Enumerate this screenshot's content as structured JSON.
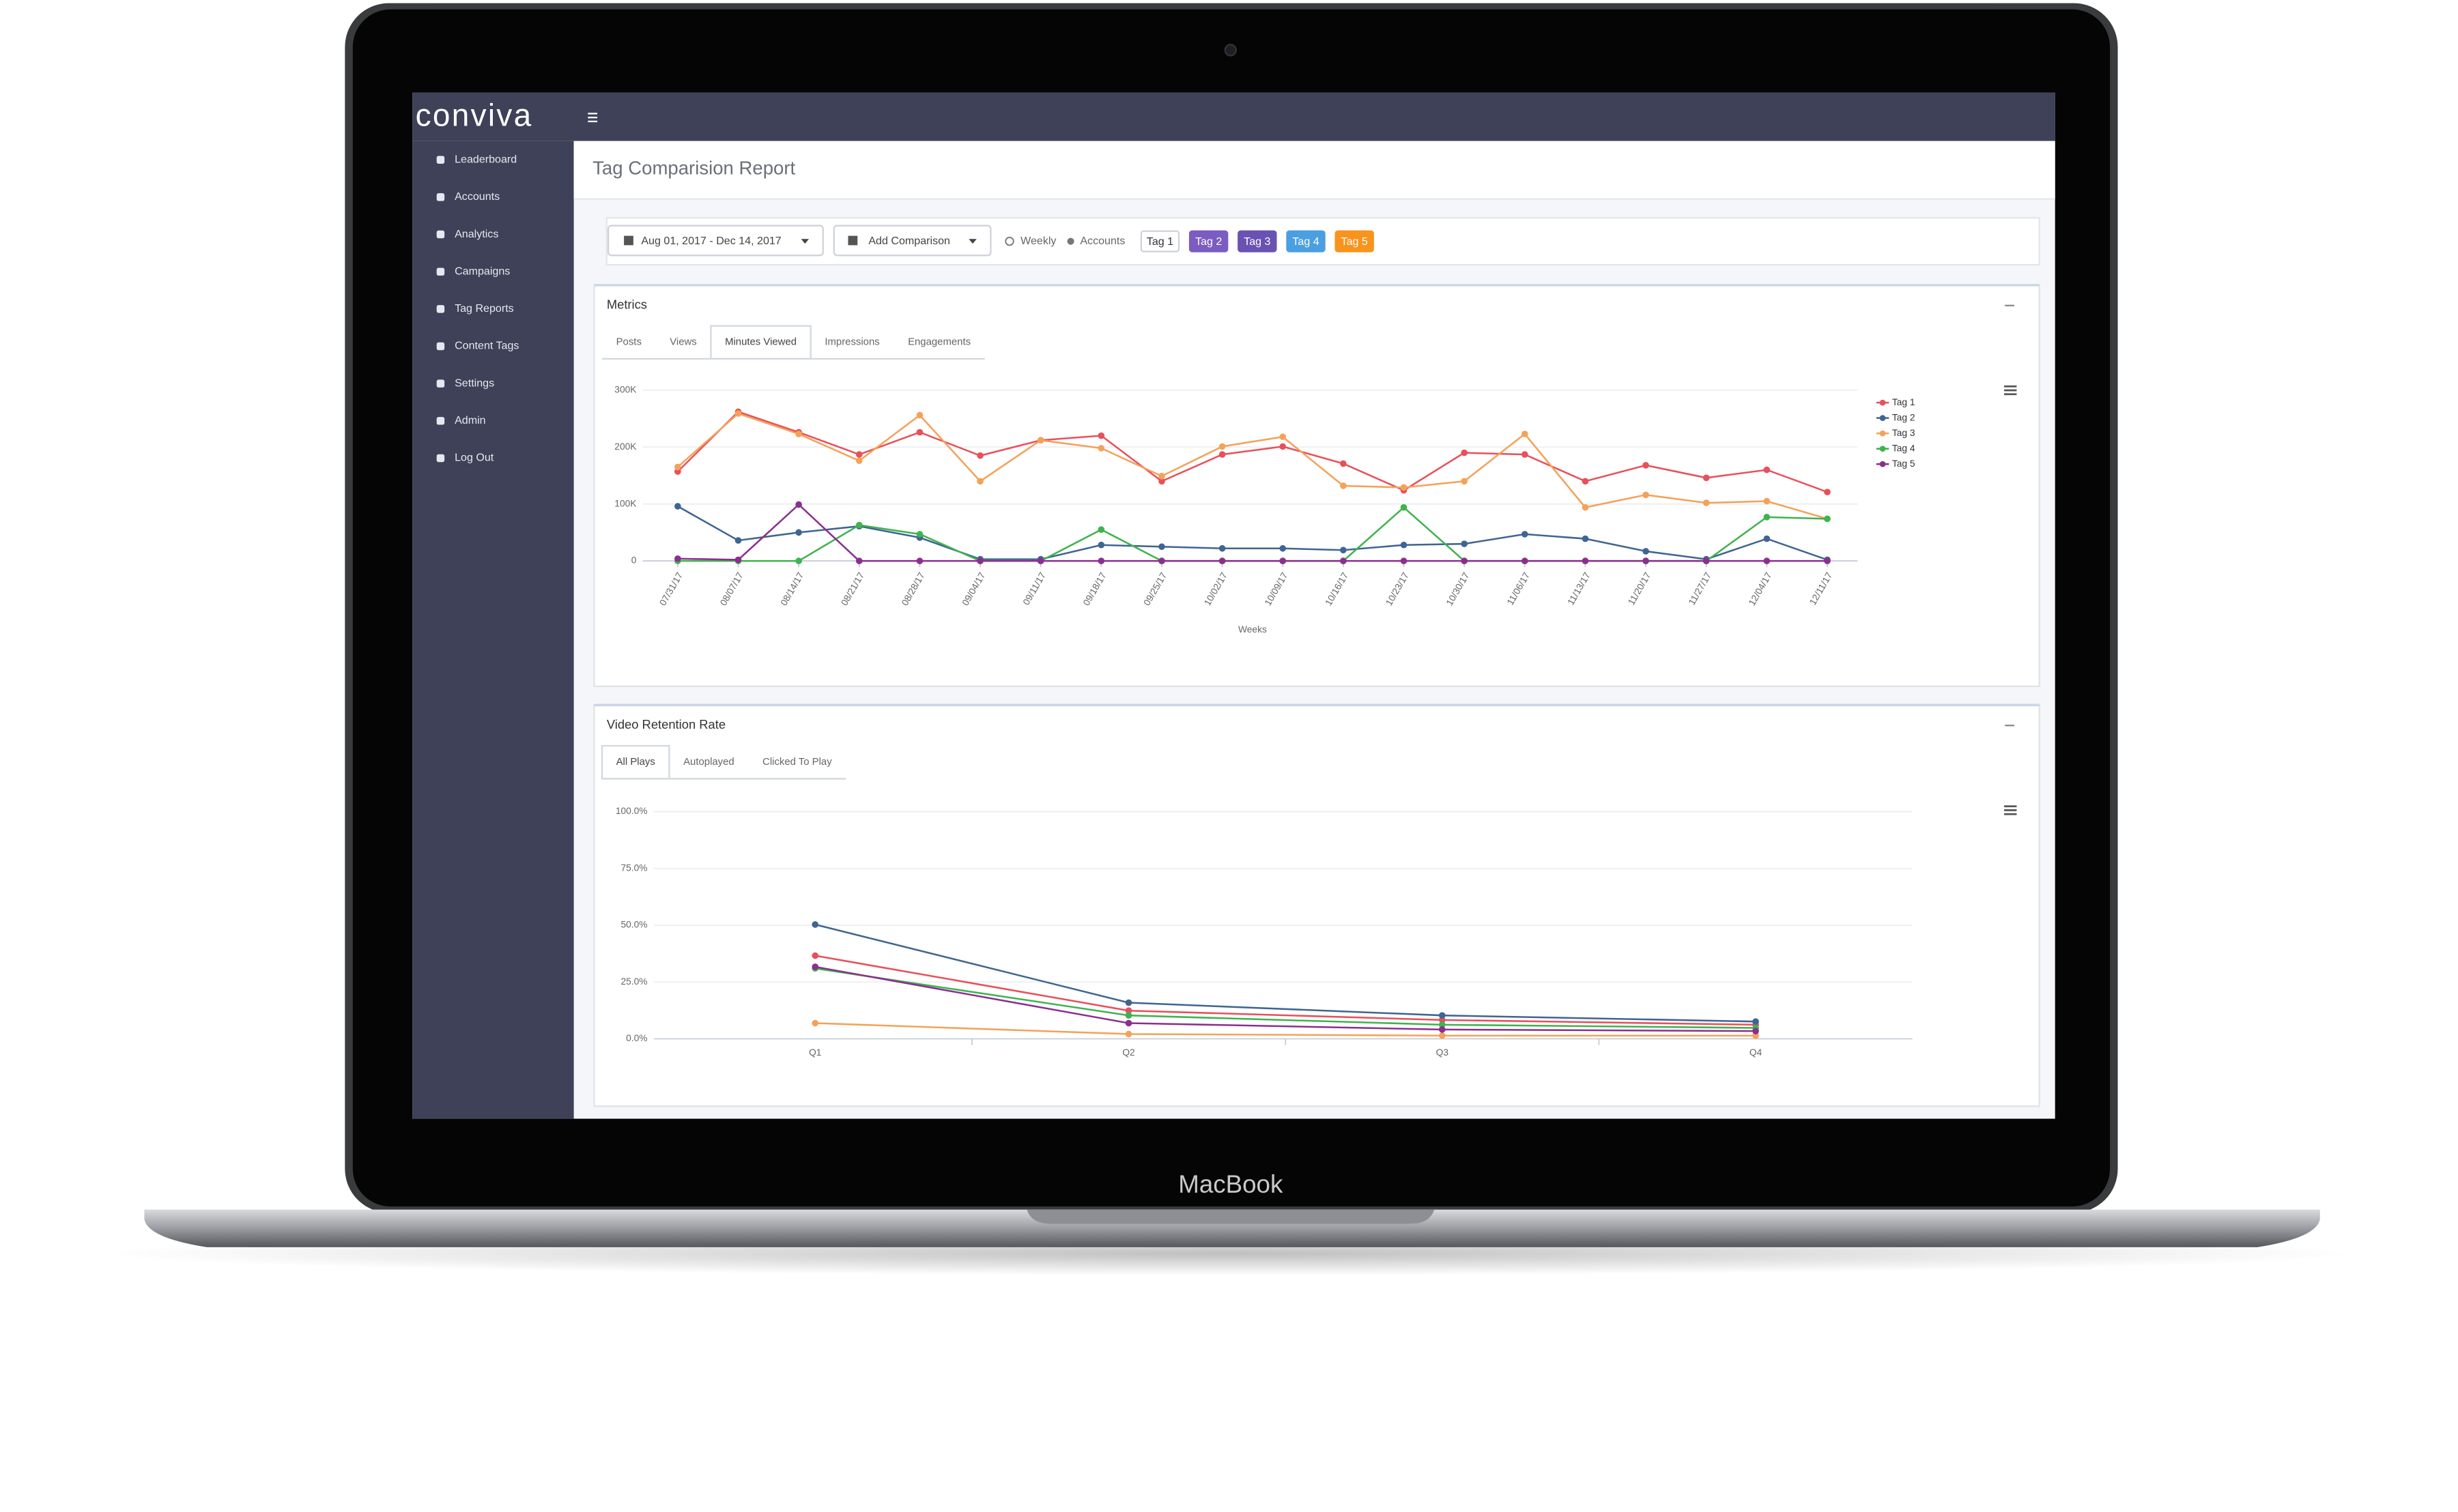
{
  "brand": "conviva",
  "device_label": "MacBook",
  "sidebar": [
    "Leaderboard",
    "Accounts",
    "Analytics",
    "Campaigns",
    "Tag Reports",
    "Content Tags",
    "Settings",
    "Admin",
    "Log Out"
  ],
  "page_title": "Tag Comparision Report",
  "toolbar": {
    "date_range": "Aug 01, 2017 - Dec 14, 2017",
    "add_comparison": "Add Comparison",
    "weekly": "Weekly",
    "accounts": "Accounts",
    "tags": [
      {
        "label": "Tag 1",
        "color": "#ffffff"
      },
      {
        "label": "Tag 2",
        "color": "#7b5cc0"
      },
      {
        "label": "Tag 3",
        "color": "#6a52b3"
      },
      {
        "label": "Tag 4",
        "color": "#4a9fe0"
      },
      {
        "label": "Tag 5",
        "color": "#f7941d"
      }
    ]
  },
  "chart_data": [
    {
      "type": "line",
      "title": "Metrics",
      "tabs": [
        "Posts",
        "Views",
        "Minutes Viewed",
        "Impressions",
        "Engagements"
      ],
      "active_tab": 2,
      "x_label": "Weeks",
      "categories": [
        "07/31/17",
        "08/07/17",
        "08/14/17",
        "08/21/17",
        "08/28/17",
        "09/04/17",
        "09/11/17",
        "09/18/17",
        "09/25/17",
        "10/02/17",
        "10/09/17",
        "10/16/17",
        "10/23/17",
        "10/30/17",
        "11/06/17",
        "11/13/17",
        "11/20/17",
        "11/27/17",
        "12/04/17",
        "12/11/17"
      ],
      "ylim": [
        0,
        300000
      ],
      "yticks": [
        0,
        {
          "value": 100000,
          "label": "100K"
        },
        {
          "value": 200000,
          "label": "200K"
        },
        {
          "value": 300000,
          "label": "300K"
        }
      ],
      "grid": true,
      "legend": "right",
      "series": [
        {
          "name": "Tag 1",
          "color": "#e8505b",
          "values": [
            157000,
            262000,
            226000,
            187000,
            226000,
            185000,
            212000,
            220000,
            140000,
            187000,
            201000,
            171000,
            124000,
            190000,
            187000,
            140000,
            168000,
            146000,
            160000,
            121000
          ]
        },
        {
          "name": "Tag 2",
          "color": "#3f6592",
          "values": [
            96000,
            36000,
            50000,
            61000,
            41000,
            3000,
            3000,
            28000,
            25000,
            22000,
            22000,
            19000,
            28000,
            30000,
            47000,
            39000,
            17000,
            3000,
            39000,
            2000
          ]
        },
        {
          "name": "Tag 3",
          "color": "#f4a259",
          "values": [
            165000,
            259000,
            223000,
            176000,
            256000,
            140000,
            212000,
            198000,
            149000,
            201000,
            218000,
            132000,
            129000,
            140000,
            223000,
            94000,
            116000,
            102000,
            105000,
            74000
          ]
        },
        {
          "name": "Tag 4",
          "color": "#3fb34f",
          "values": [
            0,
            0,
            0,
            63000,
            47000,
            0,
            0,
            55000,
            0,
            0,
            0,
            0,
            94000,
            0,
            0,
            0,
            0,
            0,
            77000,
            74000
          ]
        },
        {
          "name": "Tag 5",
          "color": "#8b2f8e",
          "values": [
            4000,
            2000,
            99000,
            0,
            0,
            0,
            0,
            0,
            0,
            0,
            0,
            0,
            0,
            0,
            0,
            0,
            0,
            0,
            0,
            0
          ]
        }
      ]
    },
    {
      "type": "line",
      "title": "Video Retention Rate",
      "tabs": [
        "All Plays",
        "Autoplayed",
        "Clicked To Play"
      ],
      "active_tab": 0,
      "categories": [
        "Q1",
        "Q2",
        "Q3",
        "Q4"
      ],
      "ylim": [
        0,
        100
      ],
      "yticks": [
        {
          "value": 0,
          "label": "0.0%"
        },
        {
          "value": 25,
          "label": "25.0%"
        },
        {
          "value": 50,
          "label": "50.0%"
        },
        {
          "value": 75,
          "label": "75.0%"
        },
        {
          "value": 100,
          "label": "100.0%"
        }
      ],
      "grid": true,
      "series": [
        {
          "color": "#e8505b",
          "values": [
            36.6,
            12.4,
            8.3,
            6.2
          ]
        },
        {
          "color": "#3f6592",
          "values": [
            50.3,
            15.9,
            10.3,
            7.6
          ]
        },
        {
          "color": "#f4a259",
          "values": [
            6.9,
            2.1,
            1.4,
            1.4
          ]
        },
        {
          "color": "#3fb34f",
          "values": [
            31.0,
            10.3,
            6.2,
            4.8
          ]
        },
        {
          "color": "#8b2f8e",
          "values": [
            31.7,
            6.9,
            4.1,
            3.4
          ]
        }
      ]
    }
  ]
}
